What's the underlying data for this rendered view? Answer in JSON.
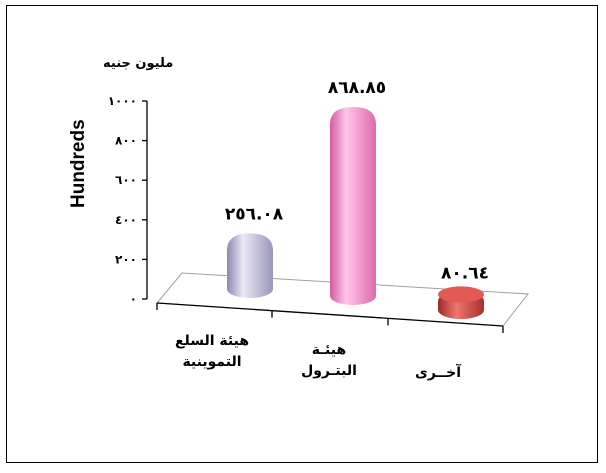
{
  "chart_data": {
    "type": "bar",
    "unit_label": "مليون جنيه",
    "ylabel": "Hundreds",
    "ylim": [
      0,
      1000
    ],
    "ytick_labels": [
      "٠",
      "٢٠٠",
      "٤٠٠",
      "٦٠٠",
      "٨٠٠",
      "١٠٠٠"
    ],
    "ytick_values": [
      0,
      200,
      400,
      600,
      800,
      1000
    ],
    "categories": [
      [
        "هيئة السلع",
        "التموينية"
      ],
      [
        "هيئـة",
        "البتـرول"
      ],
      [
        "آخــرى"
      ]
    ],
    "values": [
      256.08,
      868.85,
      80.64
    ],
    "value_labels": [
      "٢٥٦.٠٨",
      "٨٦٨.٨٥",
      "٨٠.٦٤"
    ],
    "colors": [
      "#cfcce6",
      "#f59ad2",
      "#d9443f"
    ]
  }
}
